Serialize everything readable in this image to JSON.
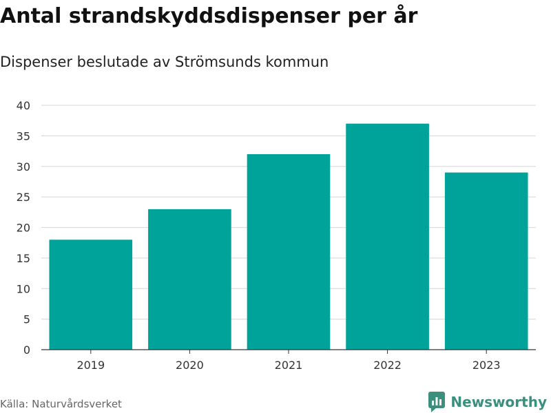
{
  "title": "Antal strandskyddsdispenser per år",
  "subtitle": "Dispenser beslutade av Strömsunds kommun",
  "source": "Källa: Naturvårdsverket",
  "brand": {
    "name": "Newsworthy",
    "icon": "newsworthy-logo-icon",
    "color": "#3a8f7d"
  },
  "colors": {
    "bar": "#00a39a",
    "grid": "#dddddd",
    "axis": "#333333",
    "tick_text": "#333333"
  },
  "chart_data": {
    "type": "bar",
    "title": "Antal strandskyddsdispenser per år",
    "subtitle": "Dispenser beslutade av Strömsunds kommun",
    "xlabel": "",
    "ylabel": "",
    "categories": [
      "2019",
      "2020",
      "2021",
      "2022",
      "2023"
    ],
    "values": [
      18,
      23,
      32,
      37,
      29
    ],
    "ylim": [
      0,
      40
    ],
    "yticks": [
      0,
      5,
      10,
      15,
      20,
      25,
      30,
      35,
      40
    ],
    "grid": true,
    "legend": "none"
  }
}
